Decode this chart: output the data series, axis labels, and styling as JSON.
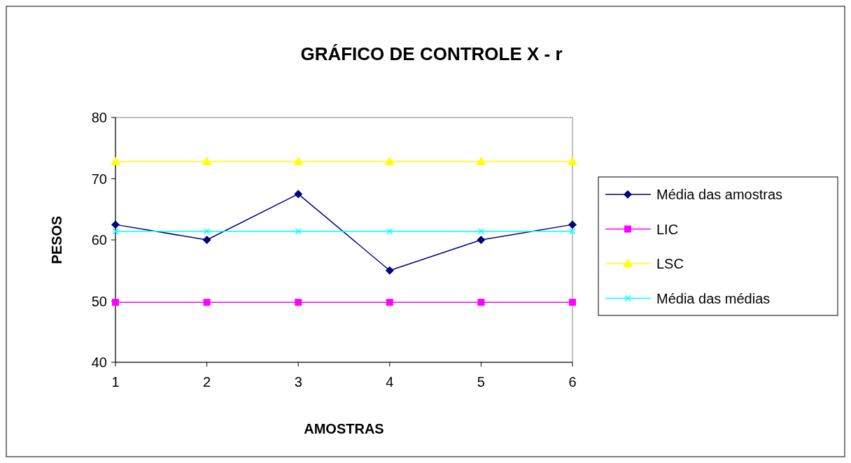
{
  "chart_data": {
    "type": "line",
    "title": "GRÁFICO DE CONTROLE X - r",
    "xlabel": "AMOSTRAS",
    "ylabel": "PESOS",
    "categories": [
      "1",
      "2",
      "3",
      "4",
      "5",
      "6"
    ],
    "series": [
      {
        "name": "Média das amostras",
        "color": "#000080",
        "marker": "diamond",
        "values": [
          62.5,
          60,
          67.5,
          55,
          60,
          62.5
        ]
      },
      {
        "name": "LIC",
        "color": "#ff00ff",
        "marker": "square",
        "values": [
          49.8,
          49.8,
          49.8,
          49.8,
          49.8,
          49.8
        ]
      },
      {
        "name": "LSC",
        "color": "#ffff00",
        "marker": "triangle",
        "values": [
          72.8,
          72.8,
          72.8,
          72.8,
          72.8,
          72.8
        ]
      },
      {
        "name": "Média das médias",
        "color": "#00ffff",
        "marker": "cross",
        "values": [
          61.4,
          61.4,
          61.4,
          61.4,
          61.4,
          61.4
        ]
      }
    ],
    "ylim": [
      40,
      80
    ],
    "yticks": [
      40,
      50,
      60,
      70,
      80
    ],
    "grid": false,
    "legend": "right",
    "line_style": "solid"
  }
}
